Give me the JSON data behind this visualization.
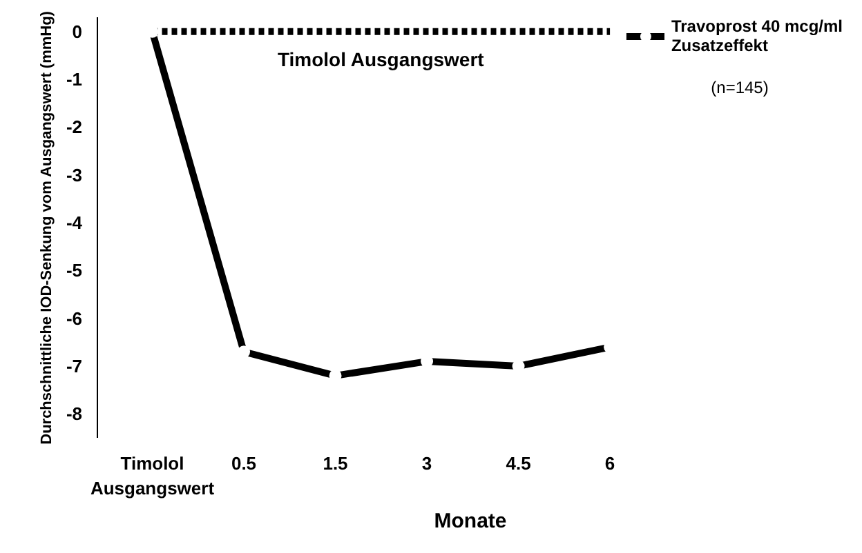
{
  "chart_data": {
    "type": "line",
    "ylabel": "Durchschnittliche IOD-Senkung vom Ausgangswert (mmHg)",
    "xlabel": "Monate",
    "categories": [
      "Timolol Ausgangswert",
      "0.5",
      "1.5",
      "3",
      "4.5",
      "6"
    ],
    "series": [
      {
        "name": "Travoprost 40 mcg/ml Zusatzeffekt",
        "color": "#000000",
        "values": [
          0,
          -6.7,
          -7.2,
          -6.9,
          -7.0,
          -6.6
        ]
      }
    ],
    "ylim": [
      -8.5,
      0.3
    ],
    "yticks": [
      0,
      -1,
      -2,
      -3,
      -4,
      -5,
      -6,
      -7,
      -8
    ],
    "ref_lines": [
      {
        "axis": "y",
        "value": 0,
        "label": "Timolol Ausgangswert",
        "line_style": "dotted",
        "color": "#000000"
      }
    ],
    "annotations": [
      "(n=145)"
    ],
    "marker": "circle",
    "line_style": "solid",
    "legend": "top right",
    "grid": false
  }
}
